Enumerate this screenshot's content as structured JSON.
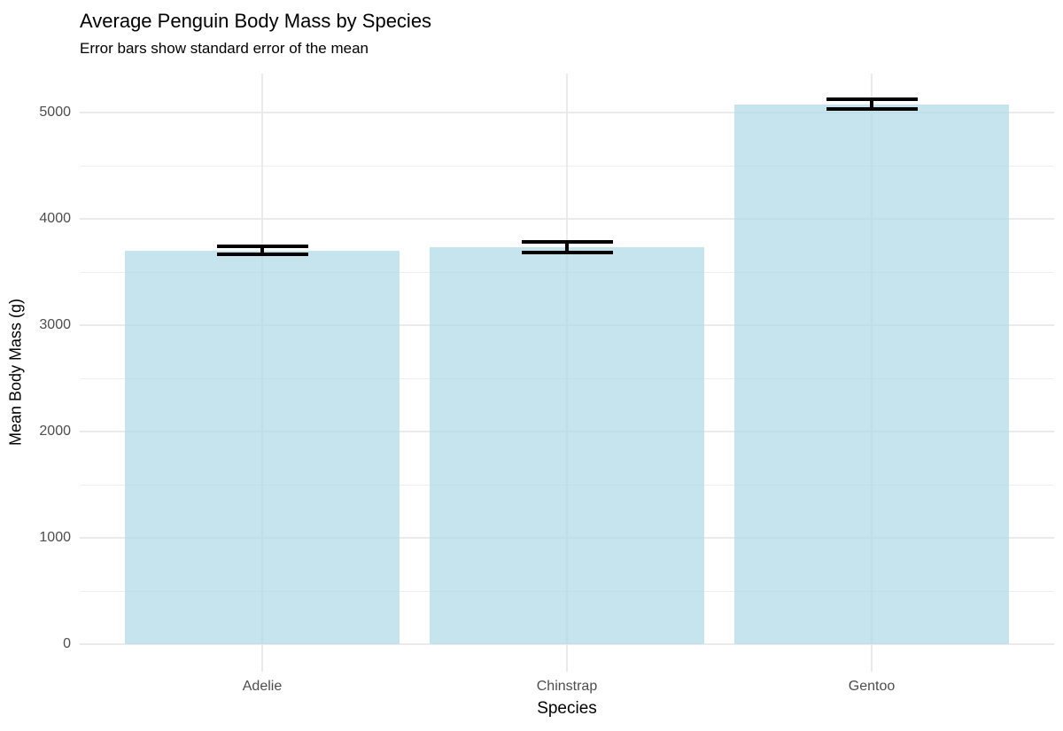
{
  "title": "Average Penguin Body Mass by Species",
  "subtitle": "Error bars show standard error of the mean",
  "chart_data": {
    "type": "bar",
    "title": "Average Penguin Body Mass by Species",
    "subtitle": "Error bars show standard error of the mean",
    "xlabel": "Species",
    "ylabel": "Mean Body Mass (g)",
    "categories": [
      "Adelie",
      "Chinstrap",
      "Gentoo"
    ],
    "series": [
      {
        "name": "Mean Body Mass (g)",
        "values": [
          3701,
          3733,
          5076
        ]
      }
    ],
    "error_bars": {
      "type": "standard error of the mean",
      "values": [
        37,
        47,
        45
      ]
    },
    "yticks": [
      0,
      1000,
      2000,
      3000,
      4000,
      5000
    ],
    "minor_yticks": [
      500,
      1500,
      2500,
      3500,
      4500
    ],
    "ylim": [
      -275,
      5350
    ],
    "grid": true,
    "legend_position": "none",
    "colors": {
      "bar_fill": "#ADD8E6",
      "bar_fill_opacity": 0.7,
      "error_bar": "#000000",
      "grid_major": "#EBEBEB",
      "grid_minor": "#EFEFEF",
      "tick_label": "#4D4D4D",
      "axis_title": "#000000",
      "background": "#FFFFFF"
    }
  }
}
